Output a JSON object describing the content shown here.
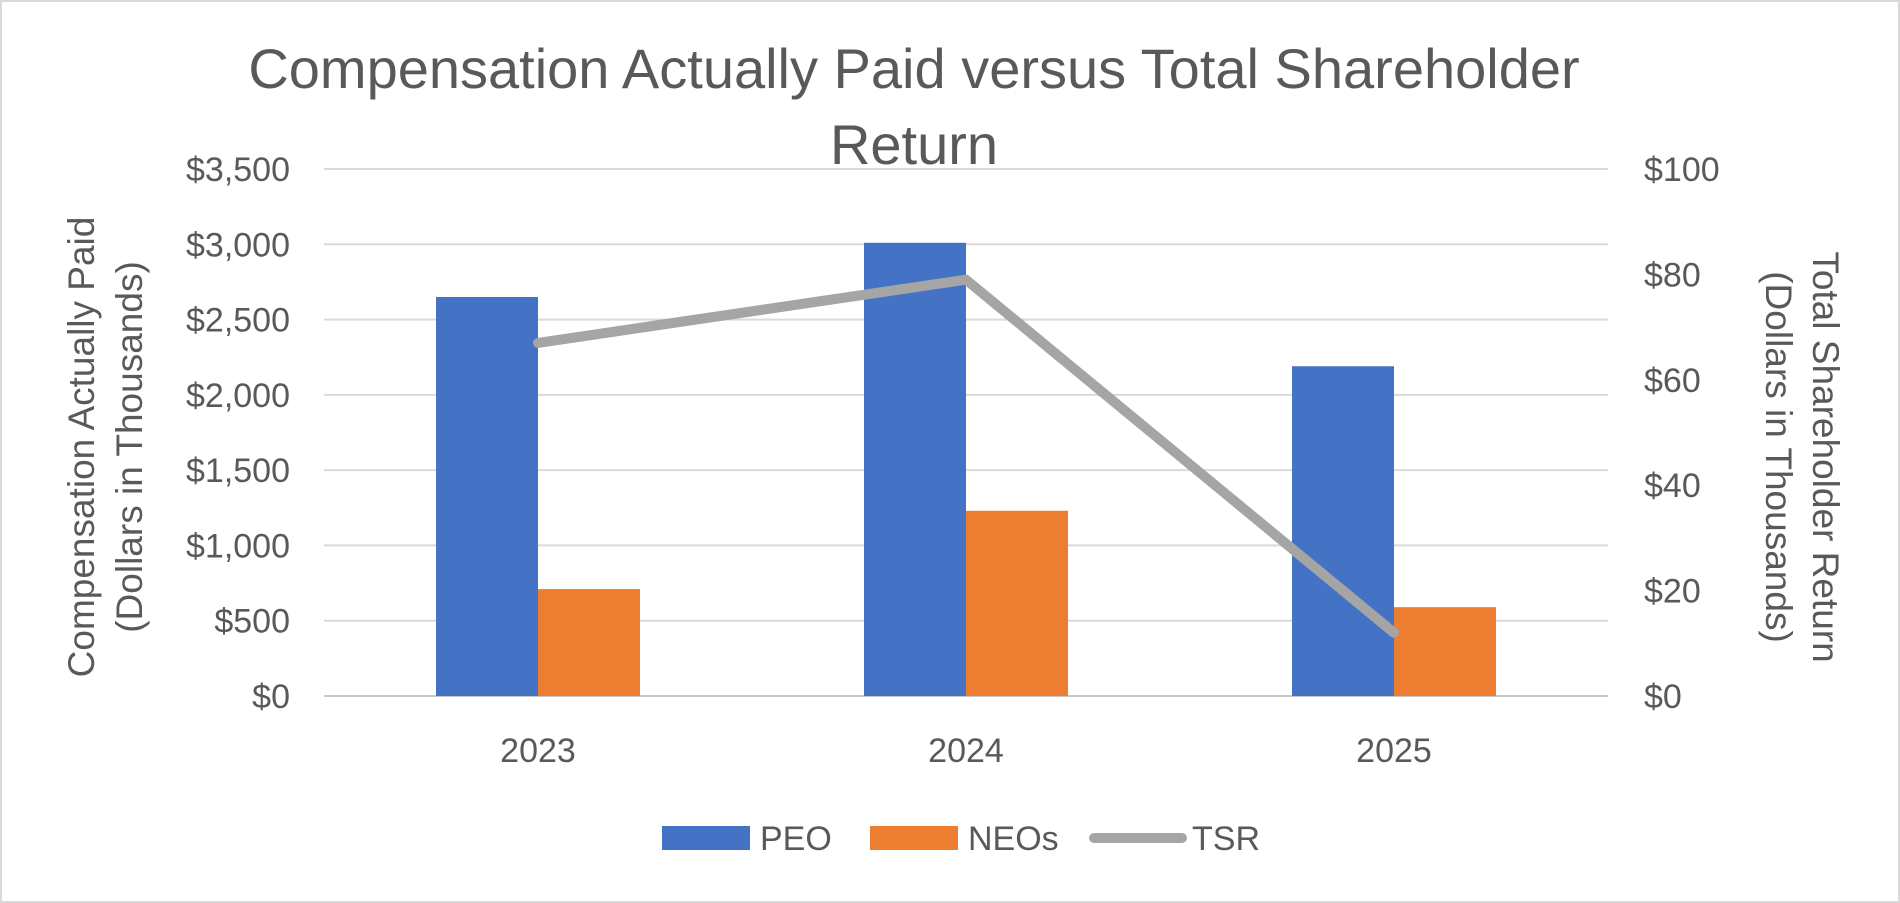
{
  "chart_data": {
    "type": "bar",
    "title_lines": [
      "Compensation Actually Paid versus Total Shareholder",
      "Return"
    ],
    "categories": [
      "2023",
      "2024",
      "2025"
    ],
    "series": [
      {
        "name": "PEO",
        "type": "bar",
        "axis": "left",
        "color": "#4472C4",
        "values": [
          2650,
          3010,
          2190
        ]
      },
      {
        "name": "NEOs",
        "type": "bar",
        "axis": "left",
        "color": "#ED7D31",
        "values": [
          710,
          1230,
          590
        ]
      },
      {
        "name": "TSR",
        "type": "line",
        "axis": "right",
        "color": "#A5A5A5",
        "values": [
          67,
          79,
          12
        ]
      }
    ],
    "y_left": {
      "label_lines": [
        "Compensation Actually Paid",
        "(Dollars in Thousands)"
      ],
      "range": [
        0,
        3500
      ],
      "ticks": [
        0,
        500,
        1000,
        1500,
        2000,
        2500,
        3000,
        3500
      ],
      "tick_labels": [
        "$0",
        "$500",
        "$1,000",
        "$1,500",
        "$2,000",
        "$2,500",
        "$3,000",
        "$3,500"
      ]
    },
    "y_right": {
      "label_lines": [
        "Total Shareholder Return",
        "(Dollars in Thousands)"
      ],
      "range": [
        0,
        100
      ],
      "ticks": [
        0,
        20,
        40,
        60,
        80,
        100
      ],
      "tick_labels": [
        "$0",
        "$20",
        "$40",
        "$60",
        "$80",
        "$100"
      ]
    },
    "grid": true,
    "legend_position": "bottom"
  }
}
